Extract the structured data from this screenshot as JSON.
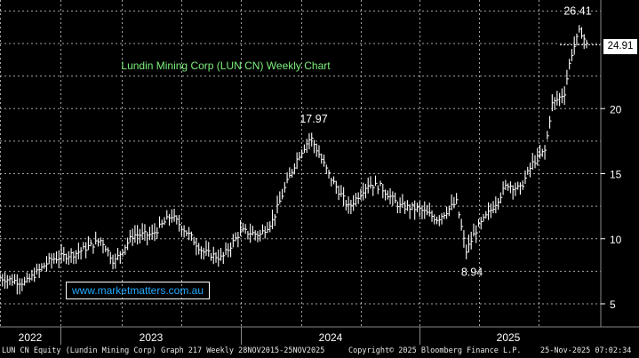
{
  "chart_data": {
    "type": "candlestick",
    "title": "Lundin Mining Corp (LUN CN) Weekly Chart",
    "ylim": [
      4.5,
      27.5
    ],
    "y_ticks": [
      5,
      10,
      15,
      20
    ],
    "x_labels": [
      "2022",
      "2023",
      "2024",
      "2025"
    ],
    "last_price": "24.91",
    "annotations": [
      {
        "label": "17.97",
        "value": 17.97,
        "date": "2024-05"
      },
      {
        "label": "8.94",
        "value": 8.94,
        "date": "2024-08"
      },
      {
        "label": "26.41",
        "value": 26.41,
        "date": "2025-11"
      }
    ],
    "series_points": [
      {
        "t": 0.0,
        "v": 7.0
      },
      {
        "t": 0.04,
        "v": 6.6
      },
      {
        "t": 0.08,
        "v": 8.4
      },
      {
        "t": 0.12,
        "v": 8.9
      },
      {
        "t": 0.16,
        "v": 9.9
      },
      {
        "t": 0.18,
        "v": 8.2
      },
      {
        "t": 0.21,
        "v": 10.3
      },
      {
        "t": 0.24,
        "v": 10.3
      },
      {
        "t": 0.27,
        "v": 11.8
      },
      {
        "t": 0.3,
        "v": 10.2
      },
      {
        "t": 0.32,
        "v": 9.0
      },
      {
        "t": 0.35,
        "v": 8.5
      },
      {
        "t": 0.38,
        "v": 10.6
      },
      {
        "t": 0.41,
        "v": 10.3
      },
      {
        "t": 0.43,
        "v": 11.4
      },
      {
        "t": 0.45,
        "v": 14.0
      },
      {
        "t": 0.47,
        "v": 16.3
      },
      {
        "t": 0.49,
        "v": 17.8
      },
      {
        "t": 0.52,
        "v": 14.8
      },
      {
        "t": 0.55,
        "v": 12.4
      },
      {
        "t": 0.58,
        "v": 14.2
      },
      {
        "t": 0.6,
        "v": 14.0
      },
      {
        "t": 0.63,
        "v": 12.5
      },
      {
        "t": 0.66,
        "v": 12.3
      },
      {
        "t": 0.69,
        "v": 11.5
      },
      {
        "t": 0.72,
        "v": 12.8
      },
      {
        "t": 0.735,
        "v": 9.0
      },
      {
        "t": 0.75,
        "v": 10.6
      },
      {
        "t": 0.78,
        "v": 12.6
      },
      {
        "t": 0.8,
        "v": 14.2
      },
      {
        "t": 0.82,
        "v": 13.8
      },
      {
        "t": 0.84,
        "v": 15.8
      },
      {
        "t": 0.86,
        "v": 16.8
      },
      {
        "t": 0.87,
        "v": 20.3
      },
      {
        "t": 0.89,
        "v": 21.2
      },
      {
        "t": 0.9,
        "v": 24.0
      },
      {
        "t": 0.915,
        "v": 26.1
      },
      {
        "t": 0.925,
        "v": 24.9
      }
    ]
  },
  "footer": {
    "left": "LUN CN Equity (Lundin Mining Corp) Graph 217 Weekly 28NOV2015-25NOV2025",
    "center": "Copyright© 2025 Bloomberg Finance L.P.",
    "right": "25-Nov-2025 07:02:34"
  },
  "watermark": "www.marketmatters.com.au",
  "colors": {
    "background": "#000000",
    "price": "#ffffff",
    "grid": "#cfcfcf",
    "title": "#7cf07c",
    "watermark": "#22aaff"
  }
}
